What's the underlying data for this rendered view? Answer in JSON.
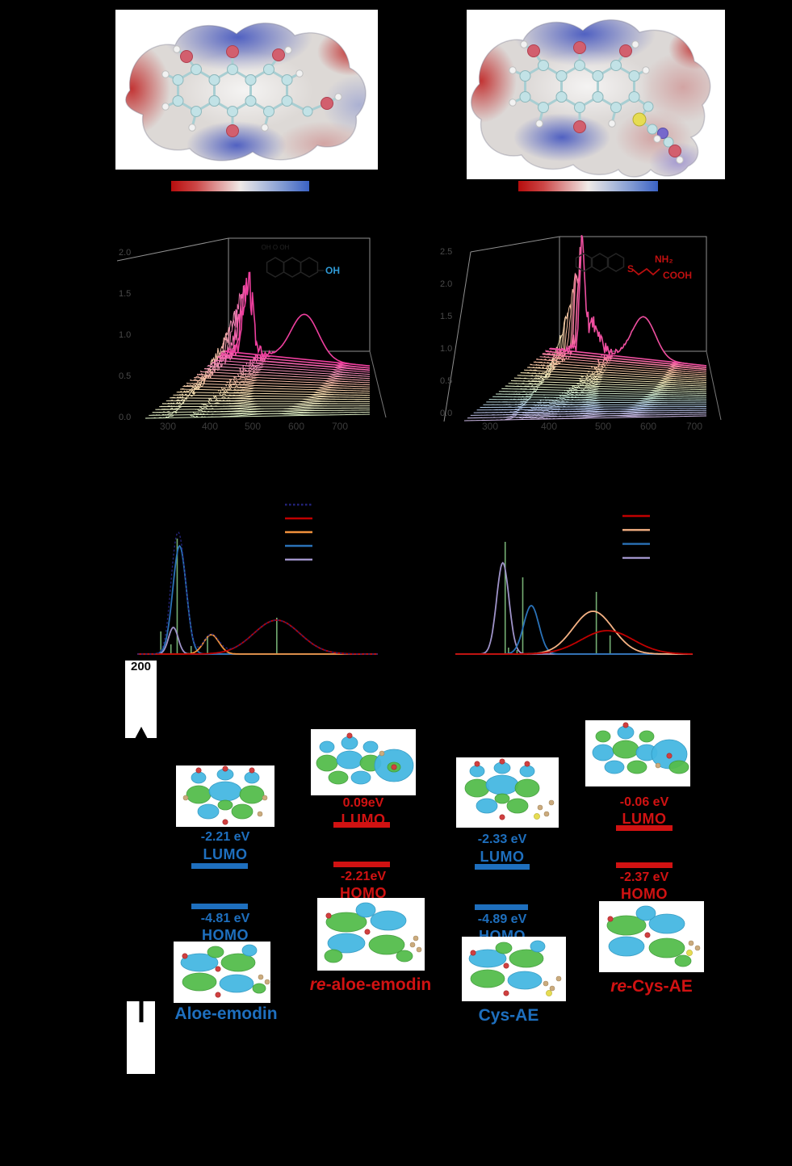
{
  "figure": {
    "background": "#000000"
  },
  "esp": {
    "colorbar_colors": [
      "#b60d0d",
      "#efe9e6",
      "#3a62c4"
    ]
  },
  "misc": {
    "x_tick_label_200": "200"
  },
  "mo": {
    "labels": {
      "lumo": "LUMO",
      "homo": "HOMO"
    },
    "columns": [
      {
        "italic_prefix": "",
        "name": "Aloe-emodin",
        "color": "#1e6fbe",
        "lumo_energy": "-2.21 eV",
        "homo_energy": "-4.81 eV"
      },
      {
        "italic_prefix": "re",
        "name": "-aloe-emodin",
        "color": "#d11212",
        "lumo_energy": "0.09eV",
        "homo_energy": "-2.21eV"
      },
      {
        "italic_prefix": "",
        "name": "Cys-AE",
        "color": "#1e6fbe",
        "lumo_energy": "-2.33 eV",
        "homo_energy": "-4.89 eV"
      },
      {
        "italic_prefix": "re",
        "name": "-Cys-AE",
        "color": "#d11212",
        "lumo_energy": "-0.06 eV",
        "homo_energy": "-2.37 eV"
      }
    ]
  },
  "chart_data": [
    {
      "id": "waterfall_aloe_emodin",
      "type": "line",
      "style": "3d-waterfall",
      "x_tick_labels": [
        "300",
        "400",
        "500",
        "600",
        "700"
      ],
      "y_tick_labels": [
        "2.0",
        "1.5",
        "1.0",
        "0.5",
        "0.0"
      ],
      "n_curves": 24,
      "x_range_nm": [
        250,
        750
      ],
      "peaks": [
        {
          "center_frac": 0.16,
          "sigma_frac": 0.032,
          "amp_first": 0.12,
          "amp_growth": 1.3,
          "power": 1.8,
          "noise": 0.5
        },
        {
          "center_frac": 0.55,
          "sigma_frac": 0.095,
          "amp_first": 0.05,
          "amp_growth": 0.88,
          "power": 2.0,
          "noise": 0
        }
      ],
      "palette": [
        "#dcedc4",
        "#f0ecc2",
        "#f7dcae",
        "#f6bba4",
        "#f491bb",
        "#ee3f9e"
      ],
      "inset": {
        "label_oh": "OH",
        "label_color": "#2f9ad6",
        "skeleton_top_labels": "OH  O  OH"
      }
    },
    {
      "id": "waterfall_cys_ae",
      "type": "line",
      "style": "3d-waterfall",
      "x_tick_labels": [
        "300",
        "400",
        "500",
        "600",
        "700"
      ],
      "y_tick_labels": [
        "2.5",
        "2.0",
        "1.5",
        "1.0",
        "0.5",
        "0.0"
      ],
      "n_curves": 28,
      "x_range_nm": [
        250,
        750
      ],
      "peaks": [
        {
          "center_frac": 0.21,
          "sigma_frac": 0.016,
          "amp_first": 0.03,
          "amp_growth": 1.85,
          "power": 3.0,
          "noise": 0.3
        },
        {
          "center_frac": 0.27,
          "sigma_frac": 0.05,
          "amp_first": 0.03,
          "amp_growth": 0.55,
          "power": 2.6,
          "noise": 0.6
        },
        {
          "center_frac": 0.6,
          "sigma_frac": 0.075,
          "amp_first": 0.04,
          "amp_growth": 0.8,
          "power": 2.2,
          "noise": 0
        }
      ],
      "palette": [
        "#cdb9e6",
        "#aec6ea",
        "#bfe0cf",
        "#e3eec4",
        "#f5e2b2",
        "#f7bd9e",
        "#ef4fa0"
      ],
      "inset": {
        "label_s": "S",
        "label_nh2": "NH₂",
        "label_cooh": "COOH",
        "label_color": "#c01010"
      }
    },
    {
      "id": "computed_spectrum_aloe_emodin",
      "type": "line",
      "x_range_nm": [
        200,
        700
      ],
      "series": [
        {
          "name": "total",
          "color": "#23237a",
          "dashed": true,
          "composition": "sum"
        },
        {
          "name": "red",
          "color": "#c00000",
          "center_nm": 490,
          "sigma_nm": 48,
          "amplitude": 0.42
        },
        {
          "name": "orange",
          "color": "#f0913c",
          "center_nm": 354,
          "sigma_nm": 16,
          "amplitude": 0.24
        },
        {
          "name": "blue",
          "color": "#2a72b8",
          "center_nm": 288,
          "sigma_nm": 14,
          "amplitude": 1.34
        },
        {
          "name": "purple",
          "color": "#9f93c9",
          "center_nm": 275,
          "sigma_nm": 10,
          "amplitude": 0.33
        }
      ],
      "oscillator_bars": {
        "color": "#7cb87a",
        "bars": [
          {
            "x_nm": 283,
            "height": 1.43
          },
          {
            "x_nm": 249,
            "height": 0.28
          },
          {
            "x_nm": 270,
            "height": 0.12
          },
          {
            "x_nm": 312,
            "height": 0.1
          },
          {
            "x_nm": 346,
            "height": 0.22
          },
          {
            "x_nm": 490,
            "height": 0.45
          }
        ]
      },
      "legend_order": [
        "total",
        "red",
        "orange",
        "blue",
        "purple"
      ]
    },
    {
      "id": "computed_spectrum_cys_ae",
      "type": "line",
      "x_range_nm": [
        230,
        730
      ],
      "series": [
        {
          "name": "red",
          "color": "#c00000",
          "center_nm": 550,
          "sigma_nm": 55,
          "amplitude": 0.29
        },
        {
          "name": "orange",
          "color": "#f5b183",
          "center_nm": 520,
          "sigma_nm": 42,
          "amplitude": 0.53
        },
        {
          "name": "blue",
          "color": "#2a72b8",
          "center_nm": 390,
          "sigma_nm": 16,
          "amplitude": 0.6
        },
        {
          "name": "purple",
          "color": "#9f93c9",
          "center_nm": 330,
          "sigma_nm": 13,
          "amplitude": 1.13
        }
      ],
      "oscillator_bars": {
        "color": "#7cb87a",
        "bars": [
          {
            "x_nm": 335,
            "height": 1.39
          },
          {
            "x_nm": 372,
            "height": 0.95
          },
          {
            "x_nm": 527,
            "height": 0.77
          },
          {
            "x_nm": 556,
            "height": 0.23
          },
          {
            "x_nm": 342,
            "height": 0.08
          },
          {
            "x_nm": 360,
            "height": 0.05
          },
          {
            "x_nm": 430,
            "height": 0.03
          }
        ]
      },
      "legend_order": [
        "red",
        "orange",
        "blue",
        "purple"
      ]
    }
  ]
}
